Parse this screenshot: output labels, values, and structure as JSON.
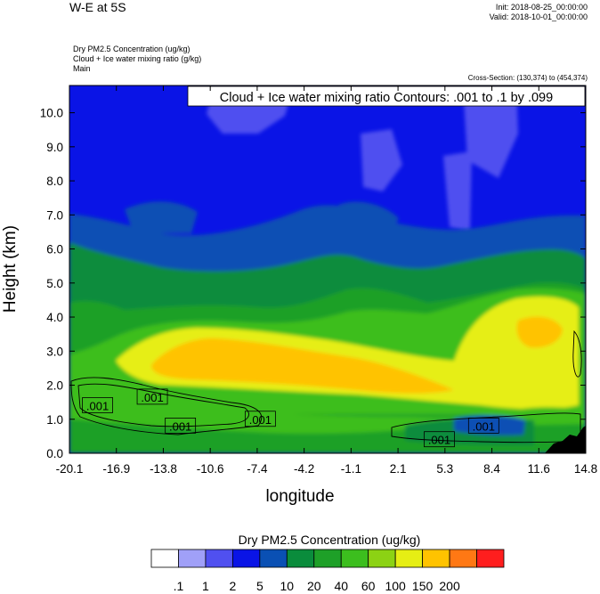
{
  "header": {
    "title": "W-E at 5S",
    "init": "Init: 2018-08-25_00:00:00",
    "valid": "Valid: 2018-10-01_00:00:00",
    "field1": "Dry PM2.5 Concentration   (ug/kg)",
    "field2": "Cloud + Ice water mixing ratio   (g/kg)",
    "field3": "Main",
    "cross_section": "Cross-Section: (130,374) to (454,374)"
  },
  "chart_data": {
    "type": "heatmap",
    "title": "W-E at 5S",
    "xlabel": "longitude",
    "ylabel": "Height (km)",
    "xlim": [
      -20.1,
      14.8
    ],
    "ylim": [
      0.0,
      10.8
    ],
    "x_ticks": [
      "-20.1",
      "-16.9",
      "-13.8",
      "-10.6",
      "-7.4",
      "-4.2",
      "-1.1",
      "2.1",
      "5.3",
      "8.4",
      "11.6",
      "14.8"
    ],
    "y_ticks": [
      "0.0",
      "1.0",
      "2.0",
      "3.0",
      "4.0",
      "5.0",
      "6.0",
      "7.0",
      "8.0",
      "9.0",
      "10.0"
    ],
    "contour_note": "Cloud + Ice water mixing ratio Contours: .001 to .1 by .099",
    "contour_labels": [
      {
        "x": -18.2,
        "y": 1.4,
        "text": ".001"
      },
      {
        "x": -14.5,
        "y": 1.65,
        "text": ".001"
      },
      {
        "x": -12.6,
        "y": 0.8,
        "text": ".001"
      },
      {
        "x": -7.2,
        "y": 1.0,
        "text": ".001"
      },
      {
        "x": 4.9,
        "y": 0.4,
        "text": ".001"
      },
      {
        "x": 7.9,
        "y": 0.8,
        "text": ".001"
      }
    ],
    "colorbar": {
      "title": "Dry PM2.5 Concentration  (ug/kg)",
      "colors": [
        "#ffffff",
        "#a0a0f8",
        "#5050f0",
        "#0a14e6",
        "#0a50b4",
        "#0a8c3c",
        "#1ea028",
        "#3cbe1e",
        "#8cd214",
        "#e6ee14",
        "#ffc300",
        "#ff7814",
        "#ff1e1e"
      ],
      "labels": [
        ".1",
        "1",
        "2",
        "5",
        "10",
        "20",
        "40",
        "60",
        "100",
        "150",
        "200"
      ]
    }
  }
}
